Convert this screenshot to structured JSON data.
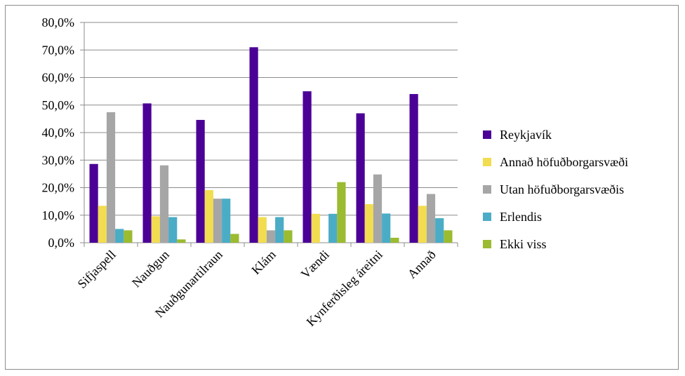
{
  "chart_data": {
    "type": "bar",
    "title": "",
    "xlabel": "",
    "ylabel": "",
    "ylim": [
      0,
      80
    ],
    "y_ticks": [
      0,
      10,
      20,
      30,
      40,
      50,
      60,
      70,
      80
    ],
    "y_tick_labels": [
      "0,0%",
      "10,0%",
      "20,0%",
      "30,0%",
      "40,0%",
      "50,0%",
      "60,0%",
      "70,0%",
      "80,0%"
    ],
    "grid": "horizontal",
    "legend_position": "right",
    "categories": [
      "Sifjaspell",
      "Nauðgun",
      "Nauðgunartilraun",
      "Klám",
      "Vændi",
      "Kynferðisleg áreitni",
      "Annað"
    ],
    "series": [
      {
        "name": "Reykjavík",
        "color": "#4B0096",
        "values": [
          28.6,
          50.6,
          44.6,
          71.0,
          55.0,
          47.0,
          54.0
        ]
      },
      {
        "name": "Annað höfuðborgarsvæði",
        "color": "#F2DC50",
        "values": [
          13.4,
          9.6,
          19.1,
          9.3,
          10.5,
          14.0,
          13.4
        ]
      },
      {
        "name": "Utan höfuðborgarsvæðis",
        "color": "#A6A6A6",
        "values": [
          47.4,
          28.1,
          16.0,
          4.5,
          0,
          24.8,
          17.7
        ]
      },
      {
        "name": "Erlendis",
        "color": "#4BACC6",
        "values": [
          5.0,
          9.3,
          16.0,
          9.3,
          10.5,
          10.6,
          8.9
        ]
      },
      {
        "name": "Ekki viss",
        "color": "#9BBB30",
        "values": [
          4.5,
          1.2,
          3.2,
          4.5,
          22.0,
          1.8,
          4.5
        ]
      }
    ]
  }
}
